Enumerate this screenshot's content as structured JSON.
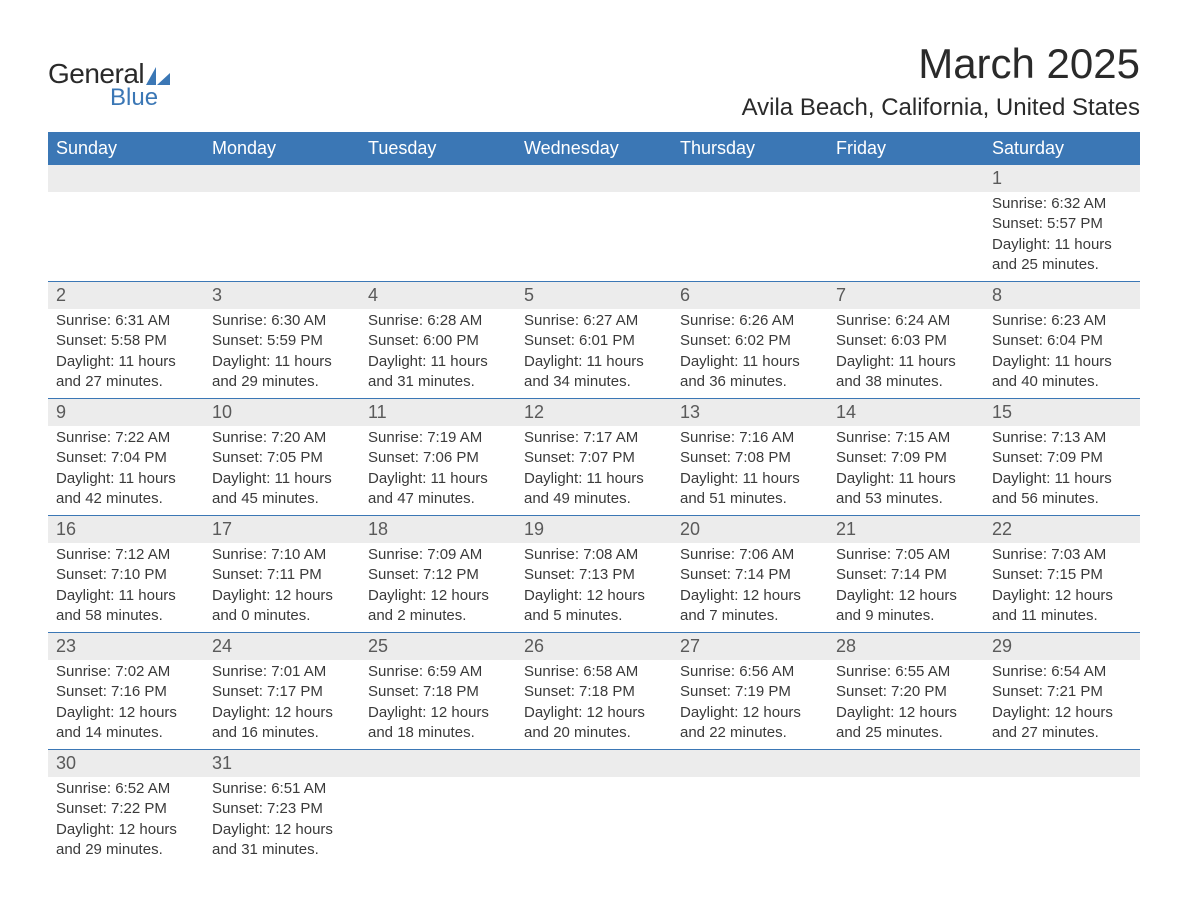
{
  "logo": {
    "text_general": "General",
    "text_blue": "Blue",
    "icon_color": "#3b77b5",
    "text_color_general": "#2a2a2a",
    "text_color_blue": "#3b77b5"
  },
  "title": {
    "month": "March 2025",
    "location": "Avila Beach, California, United States",
    "month_fontsize": 42,
    "location_fontsize": 24,
    "text_color": "#2a2a2a"
  },
  "colors": {
    "header_bg": "#3b77b5",
    "header_text": "#ffffff",
    "daynum_bg": "#ececec",
    "daynum_text": "#5a5a5a",
    "detail_text": "#3a3a3a",
    "row_divider": "#3b77b5",
    "page_bg": "#ffffff"
  },
  "typography": {
    "font_family": "Arial, Helvetica, sans-serif",
    "header_fontsize": 18,
    "daynum_fontsize": 18,
    "detail_fontsize": 15
  },
  "day_labels": [
    "Sunday",
    "Monday",
    "Tuesday",
    "Wednesday",
    "Thursday",
    "Friday",
    "Saturday"
  ],
  "weeks": [
    [
      null,
      null,
      null,
      null,
      null,
      null,
      {
        "n": "1",
        "sunrise": "Sunrise: 6:32 AM",
        "sunset": "Sunset: 5:57 PM",
        "daylight1": "Daylight: 11 hours",
        "daylight2": "and 25 minutes."
      }
    ],
    [
      {
        "n": "2",
        "sunrise": "Sunrise: 6:31 AM",
        "sunset": "Sunset: 5:58 PM",
        "daylight1": "Daylight: 11 hours",
        "daylight2": "and 27 minutes."
      },
      {
        "n": "3",
        "sunrise": "Sunrise: 6:30 AM",
        "sunset": "Sunset: 5:59 PM",
        "daylight1": "Daylight: 11 hours",
        "daylight2": "and 29 minutes."
      },
      {
        "n": "4",
        "sunrise": "Sunrise: 6:28 AM",
        "sunset": "Sunset: 6:00 PM",
        "daylight1": "Daylight: 11 hours",
        "daylight2": "and 31 minutes."
      },
      {
        "n": "5",
        "sunrise": "Sunrise: 6:27 AM",
        "sunset": "Sunset: 6:01 PM",
        "daylight1": "Daylight: 11 hours",
        "daylight2": "and 34 minutes."
      },
      {
        "n": "6",
        "sunrise": "Sunrise: 6:26 AM",
        "sunset": "Sunset: 6:02 PM",
        "daylight1": "Daylight: 11 hours",
        "daylight2": "and 36 minutes."
      },
      {
        "n": "7",
        "sunrise": "Sunrise: 6:24 AM",
        "sunset": "Sunset: 6:03 PM",
        "daylight1": "Daylight: 11 hours",
        "daylight2": "and 38 minutes."
      },
      {
        "n": "8",
        "sunrise": "Sunrise: 6:23 AM",
        "sunset": "Sunset: 6:04 PM",
        "daylight1": "Daylight: 11 hours",
        "daylight2": "and 40 minutes."
      }
    ],
    [
      {
        "n": "9",
        "sunrise": "Sunrise: 7:22 AM",
        "sunset": "Sunset: 7:04 PM",
        "daylight1": "Daylight: 11 hours",
        "daylight2": "and 42 minutes."
      },
      {
        "n": "10",
        "sunrise": "Sunrise: 7:20 AM",
        "sunset": "Sunset: 7:05 PM",
        "daylight1": "Daylight: 11 hours",
        "daylight2": "and 45 minutes."
      },
      {
        "n": "11",
        "sunrise": "Sunrise: 7:19 AM",
        "sunset": "Sunset: 7:06 PM",
        "daylight1": "Daylight: 11 hours",
        "daylight2": "and 47 minutes."
      },
      {
        "n": "12",
        "sunrise": "Sunrise: 7:17 AM",
        "sunset": "Sunset: 7:07 PM",
        "daylight1": "Daylight: 11 hours",
        "daylight2": "and 49 minutes."
      },
      {
        "n": "13",
        "sunrise": "Sunrise: 7:16 AM",
        "sunset": "Sunset: 7:08 PM",
        "daylight1": "Daylight: 11 hours",
        "daylight2": "and 51 minutes."
      },
      {
        "n": "14",
        "sunrise": "Sunrise: 7:15 AM",
        "sunset": "Sunset: 7:09 PM",
        "daylight1": "Daylight: 11 hours",
        "daylight2": "and 53 minutes."
      },
      {
        "n": "15",
        "sunrise": "Sunrise: 7:13 AM",
        "sunset": "Sunset: 7:09 PM",
        "daylight1": "Daylight: 11 hours",
        "daylight2": "and 56 minutes."
      }
    ],
    [
      {
        "n": "16",
        "sunrise": "Sunrise: 7:12 AM",
        "sunset": "Sunset: 7:10 PM",
        "daylight1": "Daylight: 11 hours",
        "daylight2": "and 58 minutes."
      },
      {
        "n": "17",
        "sunrise": "Sunrise: 7:10 AM",
        "sunset": "Sunset: 7:11 PM",
        "daylight1": "Daylight: 12 hours",
        "daylight2": "and 0 minutes."
      },
      {
        "n": "18",
        "sunrise": "Sunrise: 7:09 AM",
        "sunset": "Sunset: 7:12 PM",
        "daylight1": "Daylight: 12 hours",
        "daylight2": "and 2 minutes."
      },
      {
        "n": "19",
        "sunrise": "Sunrise: 7:08 AM",
        "sunset": "Sunset: 7:13 PM",
        "daylight1": "Daylight: 12 hours",
        "daylight2": "and 5 minutes."
      },
      {
        "n": "20",
        "sunrise": "Sunrise: 7:06 AM",
        "sunset": "Sunset: 7:14 PM",
        "daylight1": "Daylight: 12 hours",
        "daylight2": "and 7 minutes."
      },
      {
        "n": "21",
        "sunrise": "Sunrise: 7:05 AM",
        "sunset": "Sunset: 7:14 PM",
        "daylight1": "Daylight: 12 hours",
        "daylight2": "and 9 minutes."
      },
      {
        "n": "22",
        "sunrise": "Sunrise: 7:03 AM",
        "sunset": "Sunset: 7:15 PM",
        "daylight1": "Daylight: 12 hours",
        "daylight2": "and 11 minutes."
      }
    ],
    [
      {
        "n": "23",
        "sunrise": "Sunrise: 7:02 AM",
        "sunset": "Sunset: 7:16 PM",
        "daylight1": "Daylight: 12 hours",
        "daylight2": "and 14 minutes."
      },
      {
        "n": "24",
        "sunrise": "Sunrise: 7:01 AM",
        "sunset": "Sunset: 7:17 PM",
        "daylight1": "Daylight: 12 hours",
        "daylight2": "and 16 minutes."
      },
      {
        "n": "25",
        "sunrise": "Sunrise: 6:59 AM",
        "sunset": "Sunset: 7:18 PM",
        "daylight1": "Daylight: 12 hours",
        "daylight2": "and 18 minutes."
      },
      {
        "n": "26",
        "sunrise": "Sunrise: 6:58 AM",
        "sunset": "Sunset: 7:18 PM",
        "daylight1": "Daylight: 12 hours",
        "daylight2": "and 20 minutes."
      },
      {
        "n": "27",
        "sunrise": "Sunrise: 6:56 AM",
        "sunset": "Sunset: 7:19 PM",
        "daylight1": "Daylight: 12 hours",
        "daylight2": "and 22 minutes."
      },
      {
        "n": "28",
        "sunrise": "Sunrise: 6:55 AM",
        "sunset": "Sunset: 7:20 PM",
        "daylight1": "Daylight: 12 hours",
        "daylight2": "and 25 minutes."
      },
      {
        "n": "29",
        "sunrise": "Sunrise: 6:54 AM",
        "sunset": "Sunset: 7:21 PM",
        "daylight1": "Daylight: 12 hours",
        "daylight2": "and 27 minutes."
      }
    ],
    [
      {
        "n": "30",
        "sunrise": "Sunrise: 6:52 AM",
        "sunset": "Sunset: 7:22 PM",
        "daylight1": "Daylight: 12 hours",
        "daylight2": "and 29 minutes."
      },
      {
        "n": "31",
        "sunrise": "Sunrise: 6:51 AM",
        "sunset": "Sunset: 7:23 PM",
        "daylight1": "Daylight: 12 hours",
        "daylight2": "and 31 minutes."
      },
      null,
      null,
      null,
      null,
      null
    ]
  ]
}
